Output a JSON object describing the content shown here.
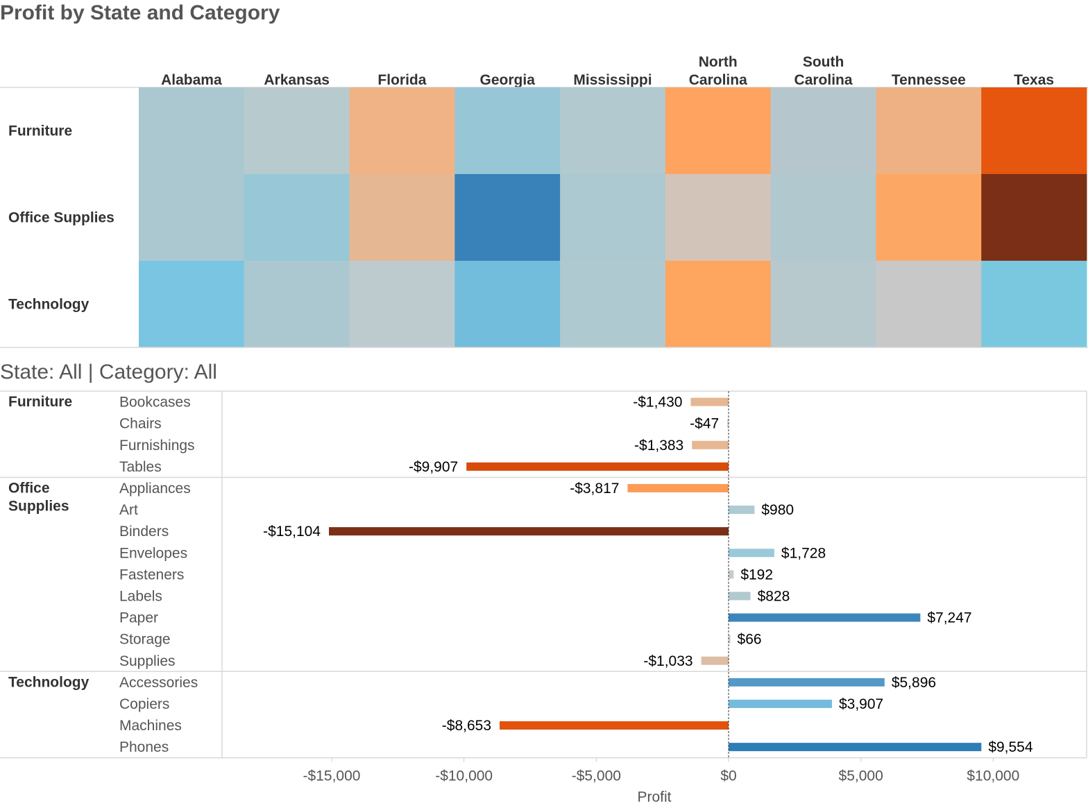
{
  "heatmap": {
    "title": "Profit by State and Category",
    "columns": [
      {
        "label": [
          "Alabama"
        ]
      },
      {
        "label": [
          "Arkansas"
        ]
      },
      {
        "label": [
          "Florida"
        ]
      },
      {
        "label": [
          "Georgia"
        ]
      },
      {
        "label": [
          "Mississippi"
        ]
      },
      {
        "label": [
          "North",
          "Carolina"
        ]
      },
      {
        "label": [
          "South",
          "Carolina"
        ]
      },
      {
        "label": [
          "Tennessee"
        ]
      },
      {
        "label": [
          "Texas"
        ]
      }
    ],
    "rows": [
      "Furniture",
      "Office Supplies",
      "Technology"
    ],
    "cell_colors": [
      [
        "#abc8d1",
        "#b7cace",
        "#f0b386",
        "#97c6d6",
        "#b1c9cf",
        "#fea460",
        "#b5c7cc",
        "#eeb184",
        "#e6560e"
      ],
      [
        "#abc8d1",
        "#98c8d7",
        "#e6b793",
        "#3882b9",
        "#acc8d0",
        "#d3c4b9",
        "#b1c8cf",
        "#fda764",
        "#7b2f16"
      ],
      [
        "#7ac5e1",
        "#abc8d0",
        "#bdcbce",
        "#72bcdc",
        "#afc9d0",
        "#fea560",
        "#b8c9cd",
        "#c8c8c8",
        "#7ac8e0"
      ]
    ]
  },
  "bar_chart": {
    "filter_label": "State: All | Category: All",
    "x_axis_title": "Profit",
    "x_ticks": [
      "-$15,000",
      "-$10,000",
      "-$5,000",
      "$0",
      "$5,000",
      "$10,000"
    ]
  },
  "chart_data": {
    "type": "bar",
    "orientation": "horizontal",
    "title": "Profit by State and Category",
    "xlabel": "Profit",
    "xlim": [
      -18000,
      13500
    ],
    "x_tick_values": [
      -15000,
      -10000,
      -5000,
      0,
      5000,
      10000
    ],
    "groups": [
      {
        "category": "Furniture",
        "items": [
          {
            "name": "Bookcases",
            "value": -1430,
            "label": "-$1,430",
            "color": "#e6b793"
          },
          {
            "name": "Chairs",
            "value": -47,
            "label": "-$47",
            "color": "#cccccc"
          },
          {
            "name": "Furnishings",
            "value": -1383,
            "label": "-$1,383",
            "color": "#e6b793"
          },
          {
            "name": "Tables",
            "value": -9907,
            "label": "-$9,907",
            "color": "#d84b0b"
          }
        ]
      },
      {
        "category": "Office Supplies",
        "items": [
          {
            "name": "Appliances",
            "value": -3817,
            "label": "-$3,817",
            "color": "#fd9c55"
          },
          {
            "name": "Art",
            "value": 980,
            "label": "$980",
            "color": "#aecbd4"
          },
          {
            "name": "Binders",
            "value": -15104,
            "label": "-$15,104",
            "color": "#7b2f16"
          },
          {
            "name": "Envelopes",
            "value": 1728,
            "label": "$1,728",
            "color": "#9acad9"
          },
          {
            "name": "Fasteners",
            "value": 192,
            "label": "$192",
            "color": "#c4cccf"
          },
          {
            "name": "Labels",
            "value": 828,
            "label": "$828",
            "color": "#b2c9cf"
          },
          {
            "name": "Paper",
            "value": 7247,
            "label": "$7,247",
            "color": "#3d86bc"
          },
          {
            "name": "Storage",
            "value": 66,
            "label": "$66",
            "color": "#cccccc"
          },
          {
            "name": "Supplies",
            "value": -1033,
            "label": "-$1,033",
            "color": "#ddbda4"
          }
        ]
      },
      {
        "category": "Technology",
        "items": [
          {
            "name": "Accessories",
            "value": 5896,
            "label": "$5,896",
            "color": "#5499c7"
          },
          {
            "name": "Copiers",
            "value": 3907,
            "label": "$3,907",
            "color": "#75bbdd"
          },
          {
            "name": "Machines",
            "value": -8653,
            "label": "-$8,653",
            "color": "#e2520d"
          },
          {
            "name": "Phones",
            "value": 9554,
            "label": "$9,554",
            "color": "#2f7cb6"
          }
        ]
      }
    ]
  }
}
